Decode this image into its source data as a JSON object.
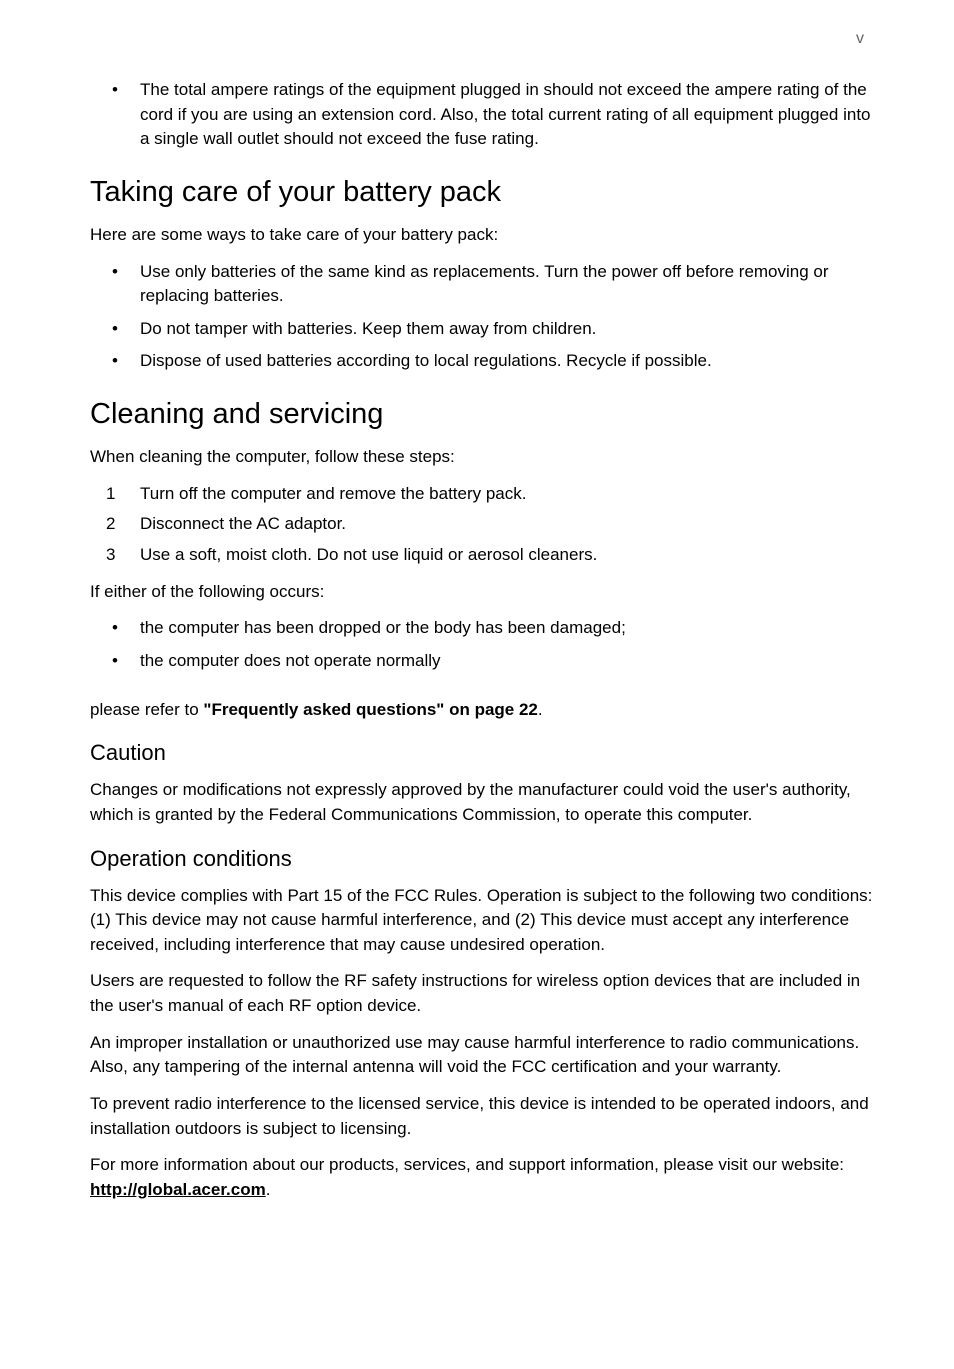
{
  "page_number": "v",
  "intro_bullets": [
    "The total ampere ratings of the equipment plugged in should not exceed the ampere rating of the cord if you are using an extension cord. Also, the total current rating of all equipment plugged into a single wall outlet should not exceed the fuse rating."
  ],
  "sections": {
    "battery": {
      "title": "Taking care of your battery pack",
      "intro": "Here are some ways to take care of your battery pack:",
      "bullets": [
        "Use only batteries of the same kind as replacements. Turn the power off before removing or replacing batteries.",
        "Do not tamper with batteries. Keep them away from children.",
        "Dispose of used batteries according to local regulations. Recycle if possible."
      ]
    },
    "cleaning": {
      "title": "Cleaning and servicing",
      "intro": "When cleaning the computer, follow these steps:",
      "steps": [
        "Turn off the computer and remove the battery pack.",
        "Disconnect the AC adaptor.",
        "Use a soft, moist cloth. Do not use liquid or aerosol cleaners."
      ],
      "either_intro": "If either of the following occurs:",
      "either_bullets": [
        "the computer has been dropped or the body has been damaged;",
        "the computer does not operate normally"
      ],
      "refer_prefix": "please refer to ",
      "refer_link": "\"Frequently asked questions\" on page 22",
      "refer_suffix": "."
    },
    "caution": {
      "title": "Caution",
      "body": "Changes or modifications not expressly approved by the manufacturer could void the user's authority, which is granted by the Federal Communications Commission, to operate this computer."
    },
    "operation": {
      "title": "Operation conditions",
      "p1": "This device complies with Part 15 of the FCC Rules. Operation is subject to the following two conditions: (1) This device may not cause harmful interference, and (2) This device must accept any interference received, including interference that may cause undesired operation.",
      "p2": "Users are requested to follow the RF safety instructions for wireless option devices that are included in the user's manual of each RF option device.",
      "p3": "An improper installation or unauthorized use may cause harmful interference to radio communications. Also, any tampering of the internal antenna will void the FCC certification and your warranty.",
      "p4": "To prevent radio interference to the licensed service, this device is intended to be operated indoors, and installation outdoors is subject to licensing.",
      "p5_prefix": "For more information about our products, services, and support information, please visit our website: ",
      "p5_link": "http://global.acer.com",
      "p5_suffix": "."
    }
  }
}
